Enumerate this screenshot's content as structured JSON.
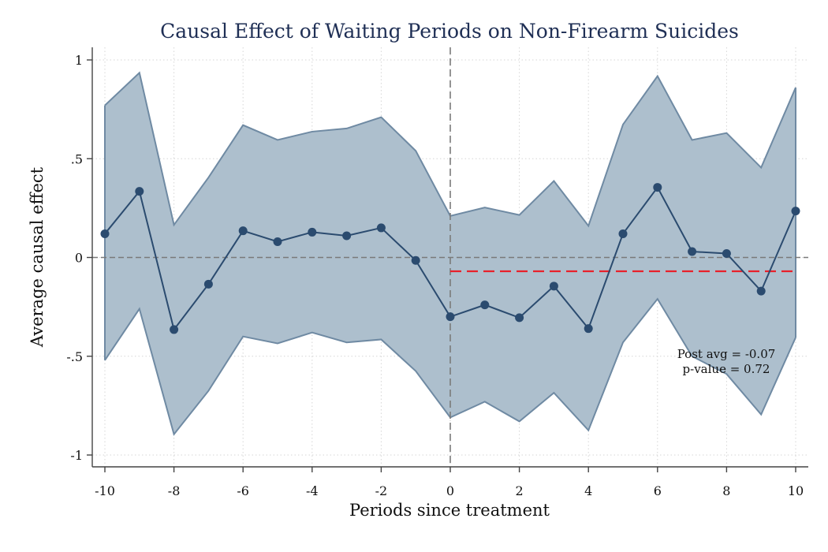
{
  "chart_data": {
    "type": "line",
    "title": "Causal Effect of Waiting Periods on Non-Firearm Suicides",
    "xlabel": "Periods since treatment",
    "ylabel": "Average causal effect",
    "xlim": [
      -10,
      10
    ],
    "ylim": [
      -1,
      1
    ],
    "x_ticks": [
      -10,
      -8,
      -6,
      -4,
      -2,
      0,
      2,
      4,
      6,
      8,
      10
    ],
    "x_tick_labels": [
      "-10",
      "-8",
      "-6",
      "-4",
      "-2",
      "0",
      "2",
      "4",
      "6",
      "8",
      "10"
    ],
    "y_ticks": [
      -1,
      -0.5,
      0,
      0.5,
      1
    ],
    "y_tick_labels": [
      "-1",
      "-.5",
      "0",
      ".5",
      "1"
    ],
    "grid": true,
    "x": [
      -10,
      -9,
      -8,
      -7,
      -6,
      -5,
      -4,
      -3,
      -2,
      -1,
      0,
      1,
      2,
      3,
      4,
      5,
      6,
      7,
      8,
      9,
      10
    ],
    "series": [
      {
        "values": [
          0.12,
          0.335,
          -0.365,
          -0.135,
          0.135,
          0.08,
          0.128,
          0.11,
          0.15,
          -0.015,
          -0.3,
          -0.24,
          -0.305,
          -0.145,
          -0.36,
          0.12,
          0.355,
          0.03,
          0.02,
          -0.17,
          0.235
        ],
        "color": "#2b4b6f"
      }
    ],
    "ci_upper": [
      0.77,
      0.935,
      0.165,
      0.405,
      0.67,
      0.595,
      0.637,
      0.653,
      0.71,
      0.54,
      0.21,
      0.253,
      0.215,
      0.387,
      0.16,
      0.673,
      0.918,
      0.595,
      0.63,
      0.455,
      0.86
    ],
    "ci_lower": [
      -0.52,
      -0.26,
      -0.895,
      -0.675,
      -0.4,
      -0.435,
      -0.38,
      -0.43,
      -0.415,
      -0.575,
      -0.81,
      -0.73,
      -0.83,
      -0.685,
      -0.875,
      -0.43,
      -0.21,
      -0.5,
      -0.59,
      -0.795,
      -0.405
    ],
    "ci_fill_color": "#adbfcd",
    "ci_edge_color": "#6f8aa3",
    "reference_lines": {
      "zero_line_y": 0,
      "treatment_line_x": 0,
      "color": "#7a7a7a"
    },
    "post_average": {
      "value": -0.07,
      "x_start": 0,
      "x_end": 10,
      "color": "#e8212b"
    },
    "annotations": [
      "Post avg = -0.07",
      "p-value = 0.72"
    ]
  }
}
